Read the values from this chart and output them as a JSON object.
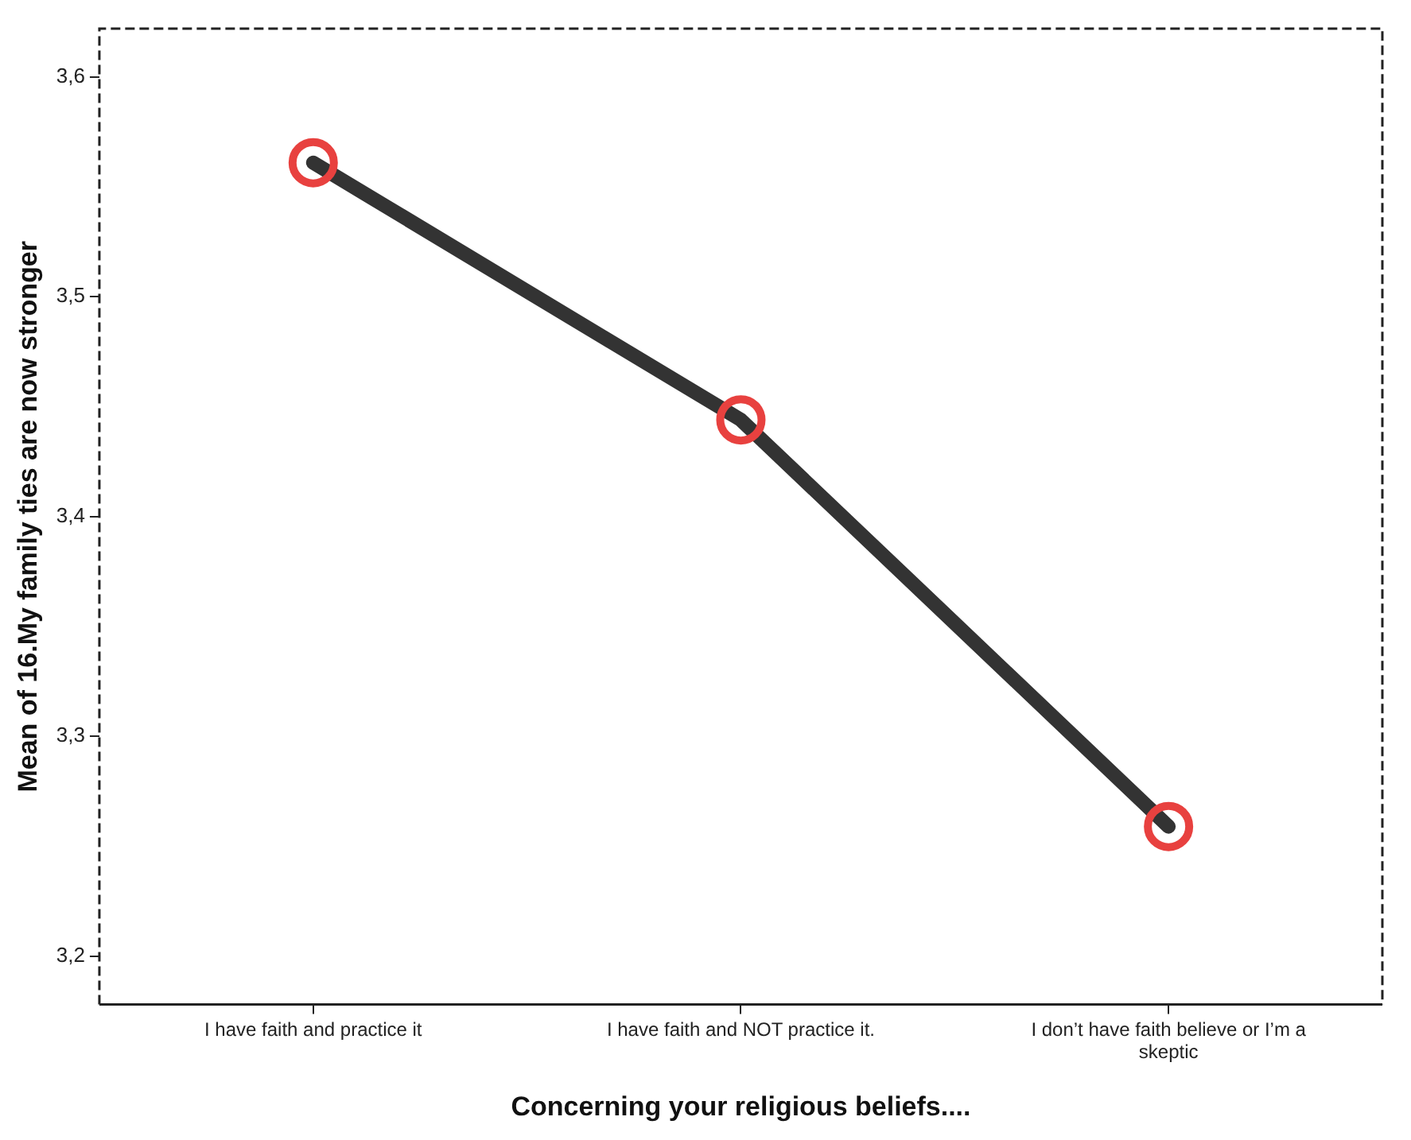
{
  "chart_data": {
    "type": "line",
    "xlabel": "Concerning your religious beliefs....",
    "ylabel": "Mean of 16.My family ties are now stronger",
    "categories": [
      "I have faith and practice it",
      "I have faith and NOT practice it.",
      "I don’t have faith believe or I’m a skeptic"
    ],
    "series": [
      {
        "color": "#333333",
        "marker": "none",
        "values": [
          3.561,
          3.444,
          3.259
        ]
      },
      {
        "type": "scatter",
        "color": "#e8413f",
        "x": [
          "I have faith and practice it",
          "I have faith and NOT practice it.",
          "I don’t have faith believe or I’m a skeptic"
        ],
        "values": [
          3.561,
          3.444,
          3.259
        ]
      }
    ],
    "marker": "circle",
    "line_style": "solid",
    "ylim": [
      3.178,
      3.622
    ],
    "yticks": [
      {
        "value": 3.2,
        "label": "3,2"
      },
      {
        "value": 3.3,
        "label": "3,3"
      },
      {
        "value": 3.4,
        "label": "3,4"
      },
      {
        "value": 3.5,
        "label": "3,5"
      },
      {
        "value": 3.6,
        "label": "3,6"
      }
    ],
    "grid": false,
    "legend": false
  }
}
